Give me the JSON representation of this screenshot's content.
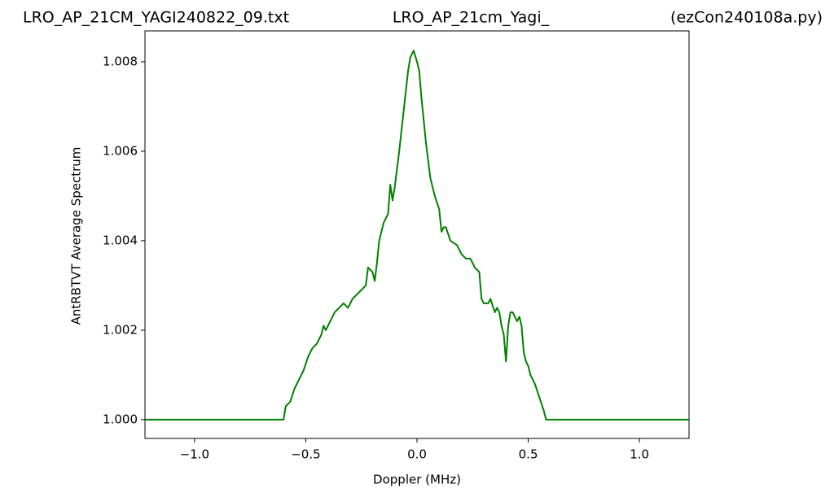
{
  "chart_data": {
    "type": "line",
    "title_left": "LRO_AP_21CM_YAGI240822_09.txt",
    "title_center": "LRO_AP_21cm_Yagi_",
    "title_right": "(ezCon240108a.py)",
    "x_label": "Doppler (MHz)",
    "y_label": "AntRBTVT Average Spectrum",
    "color": "#008000",
    "xlim": [
      -1.2228,
      1.2228
    ],
    "ylim": [
      0.99958,
      1.00869
    ],
    "xticks": [
      {
        "value": -1,
        "label": "−1.0"
      },
      {
        "value": -0.5,
        "label": "−0.5"
      },
      {
        "value": 0,
        "label": "0.0"
      },
      {
        "value": 0.5,
        "label": "0.5"
      },
      {
        "value": 1,
        "label": "1.0"
      }
    ],
    "yticks": [
      {
        "value": 1,
        "label": "1.000"
      },
      {
        "value": 1.002,
        "label": "1.002"
      },
      {
        "value": 1.004,
        "label": "1.004"
      },
      {
        "value": 1.006,
        "label": "1.006"
      },
      {
        "value": 1.008,
        "label": "1.008"
      }
    ],
    "x": [
      -1.2228,
      -0.6,
      -0.59,
      -0.57,
      -0.55,
      -0.53,
      -0.51,
      -0.49,
      -0.47,
      -0.45,
      -0.43,
      -0.42,
      -0.41,
      -0.39,
      -0.37,
      -0.35,
      -0.33,
      -0.31,
      -0.29,
      -0.27,
      -0.25,
      -0.23,
      -0.22,
      -0.2,
      -0.19,
      -0.18,
      -0.17,
      -0.15,
      -0.13,
      -0.12,
      -0.11,
      -0.1,
      -0.08,
      -0.06,
      -0.04,
      -0.03,
      -0.015,
      0,
      0.01,
      0.02,
      0.04,
      0.06,
      0.08,
      0.1,
      0.11,
      0.12,
      0.13,
      0.15,
      0.18,
      0.2,
      0.22,
      0.24,
      0.26,
      0.28,
      0.29,
      0.3,
      0.32,
      0.33,
      0.35,
      0.36,
      0.37,
      0.38,
      0.39,
      0.4,
      0.41,
      0.42,
      0.43,
      0.45,
      0.46,
      0.47,
      0.48,
      0.49,
      0.5,
      0.51,
      0.53,
      0.55,
      0.57,
      0.58,
      1.2228
    ],
    "values": [
      1.0,
      1.0,
      1.0003,
      1.0004,
      1.0007,
      1.0009,
      1.0011,
      1.0014,
      1.0016,
      1.0017,
      1.0019,
      1.0021,
      1.002,
      1.0022,
      1.0024,
      1.0025,
      1.0026,
      1.0025,
      1.0027,
      1.0028,
      1.0029,
      1.003,
      1.0034,
      1.0033,
      1.0031,
      1.0035,
      1.004,
      1.0044,
      1.0046,
      1.00525,
      1.0049,
      1.0052,
      1.006,
      1.0069,
      1.0078,
      1.0081,
      1.00825,
      1.008,
      1.0078,
      1.0072,
      1.0062,
      1.0054,
      1.005,
      1.0047,
      1.0042,
      1.0043,
      1.0043,
      1.004,
      1.0039,
      1.0037,
      1.0036,
      1.0036,
      1.0034,
      1.0033,
      1.0027,
      1.0026,
      1.0026,
      1.0027,
      1.0024,
      1.0025,
      1.0024,
      1.0021,
      1.0019,
      1.0013,
      1.0021,
      1.0024,
      1.0024,
      1.0022,
      1.0023,
      1.0021,
      1.0015,
      1.0013,
      1.0012,
      1.001,
      1.0008,
      1.0005,
      1.0002,
      1.0,
      1.0
    ]
  }
}
